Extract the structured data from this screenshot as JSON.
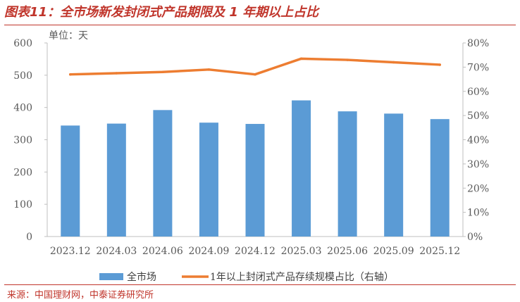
{
  "figure": {
    "title": "图表11：全市场新发封闭式产品期限及 1 年期以上占比",
    "source": "来源：中国理财网，中泰证券研究所"
  },
  "chart_data": {
    "type": "bar",
    "unit_label": "单位：天",
    "categories": [
      "2023.12",
      "2024.03",
      "2024.06",
      "2024.09",
      "2024.12",
      "2025.03",
      "2025.06",
      "2025.09",
      "2025.12"
    ],
    "series": [
      {
        "name": "全市场",
        "type": "bar",
        "axis": "left",
        "color": "#5b9bd5",
        "values": [
          344,
          350,
          392,
          353,
          349,
          422,
          388,
          381,
          364
        ]
      },
      {
        "name": "1年以上封闭式产品存续规模占比（右轴）",
        "type": "line",
        "axis": "right",
        "color": "#ed7d31",
        "values": [
          0.67,
          0.675,
          0.68,
          0.69,
          0.67,
          0.735,
          0.73,
          0.72,
          0.71
        ]
      }
    ],
    "y_left": {
      "min": 0,
      "max": 600,
      "ticks": [
        0,
        100,
        200,
        300,
        400,
        500,
        600
      ],
      "tick_labels": [
        "0",
        "100",
        "200",
        "300",
        "400",
        "500",
        "600"
      ]
    },
    "y_right": {
      "min": 0,
      "max": 0.8,
      "ticks": [
        0,
        0.1,
        0.2,
        0.3,
        0.4,
        0.5,
        0.6,
        0.7,
        0.8
      ],
      "tick_labels": [
        "0%",
        "10%",
        "20%",
        "30%",
        "40%",
        "50%",
        "60%",
        "70%",
        "80%"
      ]
    },
    "grid": false,
    "legend_position": "bottom"
  }
}
